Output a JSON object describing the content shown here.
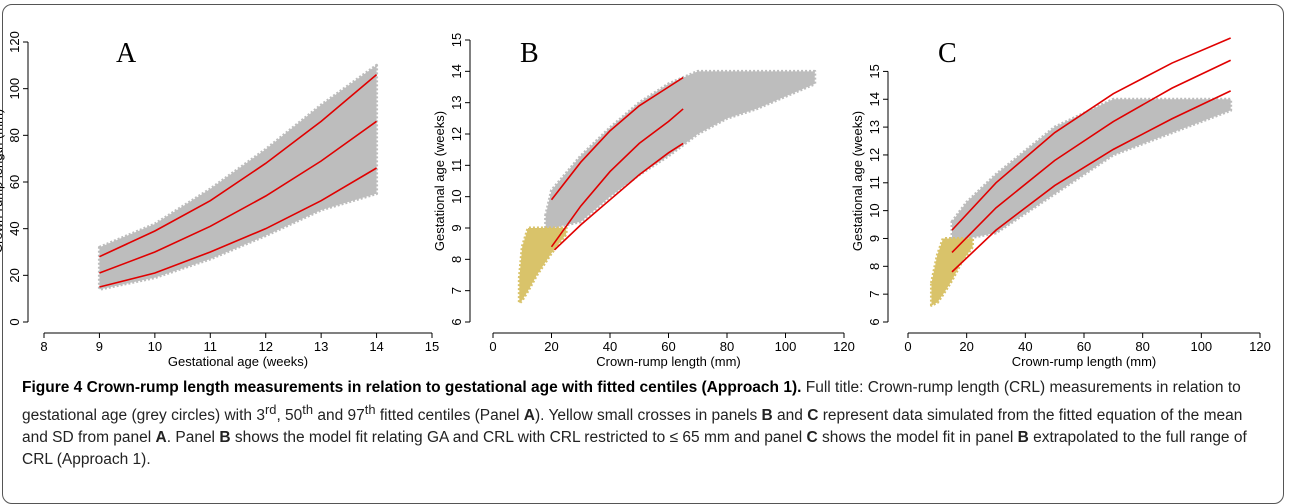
{
  "chart_data": [
    {
      "type": "scatter",
      "annotation": "A",
      "xlabel": "Gestational age (weeks)",
      "ylabel": "Crown-rump length (mm)",
      "xlim": [
        8,
        15
      ],
      "ylim": [
        0,
        120
      ],
      "xticks": [
        8,
        9,
        10,
        11,
        12,
        13,
        14,
        15
      ],
      "yticks": [
        0,
        20,
        40,
        60,
        80,
        100,
        120
      ],
      "series": [
        {
          "style": "band",
          "color": "#bdbdbd",
          "x": [
            9,
            10,
            11,
            12,
            13,
            14
          ],
          "lower": [
            14,
            19,
            27,
            37,
            48,
            55
          ],
          "upper": [
            32,
            42,
            57,
            74,
            93,
            110
          ]
        },
        {
          "style": "line",
          "color": "#e00000",
          "x": [
            9,
            10,
            11,
            12,
            13,
            14
          ],
          "values": [
            15,
            21,
            30,
            40,
            52,
            66
          ]
        },
        {
          "style": "line",
          "color": "#e00000",
          "x": [
            9,
            10,
            11,
            12,
            13,
            14
          ],
          "values": [
            21,
            30,
            41,
            54,
            69,
            86
          ]
        },
        {
          "style": "line",
          "color": "#e00000",
          "x": [
            9,
            10,
            11,
            12,
            13,
            14
          ],
          "values": [
            28,
            39,
            52,
            68,
            86,
            106
          ]
        }
      ]
    },
    {
      "type": "scatter",
      "annotation": "B",
      "xlabel": "Crown-rump length (mm)",
      "ylabel": "Gestational age (weeks)",
      "xlim": [
        0,
        120
      ],
      "ylim": [
        6,
        15
      ],
      "xticks": [
        0,
        20,
        40,
        60,
        80,
        100,
        120
      ],
      "yticks": [
        6,
        7,
        8,
        9,
        10,
        11,
        12,
        13,
        14,
        15
      ],
      "series": [
        {
          "style": "band",
          "color": "#bdbdbd",
          "x": [
            18,
            20,
            30,
            40,
            50,
            60,
            70,
            80,
            90,
            100,
            110
          ],
          "lower": [
            9,
            9,
            9.2,
            10,
            10.7,
            11.3,
            12,
            12.5,
            12.8,
            13.2,
            13.6
          ],
          "upper": [
            9.4,
            10.2,
            11.3,
            12.2,
            13,
            13.6,
            14,
            14,
            14,
            14,
            14
          ]
        },
        {
          "style": "band",
          "color": "#d9c36a",
          "x": [
            9,
            10,
            12,
            15,
            20,
            25
          ],
          "lower": [
            6.6,
            6.7,
            7,
            7.5,
            8.2,
            8.8
          ],
          "upper": [
            7.4,
            8.4,
            9,
            9,
            9,
            9
          ]
        },
        {
          "style": "line",
          "color": "#e00000",
          "x": [
            20,
            30,
            40,
            50,
            60,
            65
          ],
          "values": [
            9.9,
            11.1,
            12.1,
            12.9,
            13.5,
            13.8
          ]
        },
        {
          "style": "line",
          "color": "#e00000",
          "x": [
            20,
            30,
            40,
            50,
            60,
            65
          ],
          "values": [
            8.4,
            9.7,
            10.8,
            11.7,
            12.4,
            12.8
          ]
        },
        {
          "style": "line",
          "color": "#e00000",
          "x": [
            21,
            30,
            40,
            50,
            60,
            65
          ],
          "values": [
            8.3,
            9.1,
            9.9,
            10.7,
            11.4,
            11.7
          ]
        }
      ]
    },
    {
      "type": "scatter",
      "annotation": "C",
      "xlabel": "Crown-rump length (mm)",
      "ylabel": "Gestational age (weeks)",
      "xlim": [
        0,
        120
      ],
      "ylim": [
        6,
        16.2
      ],
      "xticks": [
        0,
        20,
        40,
        60,
        80,
        100,
        120
      ],
      "yticks": [
        6,
        7,
        8,
        9,
        10,
        11,
        12,
        13,
        14,
        15
      ],
      "series": [
        {
          "style": "band",
          "color": "#bdbdbd",
          "x": [
            15,
            20,
            30,
            50,
            70,
            90,
            110
          ],
          "lower": [
            9,
            9,
            9.2,
            10.6,
            12,
            12.8,
            13.6
          ],
          "upper": [
            9.6,
            10.3,
            11.3,
            13,
            14,
            14,
            14
          ]
        },
        {
          "style": "band",
          "color": "#d9c36a",
          "x": [
            8,
            10,
            12,
            15,
            18,
            22
          ],
          "lower": [
            6.6,
            6.7,
            7,
            7.5,
            8.1,
            8.7
          ],
          "upper": [
            7.4,
            8.4,
            9,
            9,
            9,
            9
          ]
        },
        {
          "style": "line",
          "color": "#e00000",
          "x": [
            15,
            30,
            50,
            70,
            90,
            110
          ],
          "values": [
            9.3,
            11,
            12.8,
            14.2,
            15.3,
            16.2
          ]
        },
        {
          "style": "line",
          "color": "#e00000",
          "x": [
            15,
            30,
            50,
            70,
            90,
            110
          ],
          "values": [
            8.5,
            10.1,
            11.8,
            13.2,
            14.4,
            15.4
          ]
        },
        {
          "style": "line",
          "color": "#e00000",
          "x": [
            15,
            30,
            50,
            70,
            90,
            110
          ],
          "values": [
            7.8,
            9.3,
            10.9,
            12.2,
            13.3,
            14.3
          ]
        }
      ]
    }
  ],
  "caption": {
    "title": "Figure 4 Crown-rump length measurements in relation to gestational age with fitted centiles (Approach 1).",
    "runs": [
      {
        "style": "normal",
        "text": " Full title: Crown-rump length (CRL) measurements in relation to gestational age (grey circles) with 3"
      },
      {
        "style": "sup",
        "text": "rd"
      },
      {
        "style": "normal",
        "text": ", 50"
      },
      {
        "style": "sup",
        "text": "th"
      },
      {
        "style": "normal",
        "text": " and 97"
      },
      {
        "style": "sup",
        "text": "th"
      },
      {
        "style": "normal",
        "text": " fitted centiles (Panel "
      },
      {
        "style": "bold",
        "text": "A"
      },
      {
        "style": "normal",
        "text": "). Yellow small crosses in panels "
      },
      {
        "style": "bold",
        "text": "B"
      },
      {
        "style": "normal",
        "text": " and "
      },
      {
        "style": "bold",
        "text": "C"
      },
      {
        "style": "normal",
        "text": " represent data simulated from the fitted equation of the mean and SD from panel "
      },
      {
        "style": "bold",
        "text": "A"
      },
      {
        "style": "normal",
        "text": ". Panel "
      },
      {
        "style": "bold",
        "text": "B"
      },
      {
        "style": "normal",
        "text": " shows the model fit relating GA and CRL with CRL restricted to ≤ 65 mm and panel "
      },
      {
        "style": "bold",
        "text": "C"
      },
      {
        "style": "normal",
        "text": " shows the model fit in panel "
      },
      {
        "style": "bold",
        "text": "B"
      },
      {
        "style": "normal",
        "text": " extrapolated to the full range of CRL (Approach 1)."
      }
    ]
  }
}
